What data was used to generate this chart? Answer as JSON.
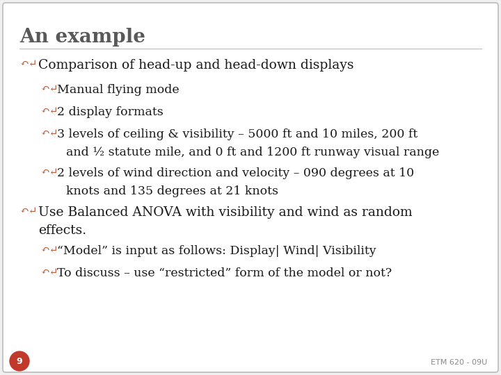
{
  "title": "An example",
  "title_color": "#595959",
  "background_color": "#f0f0f0",
  "border_color": "#bbbbbb",
  "bullet_color": "#b85c38",
  "text_color": "#1a1a1a",
  "slide_number": "9",
  "slide_number_bg": "#c0392b",
  "slide_number_text_color": "#ffffff",
  "footer_text": "ETM 620 - 09U",
  "footer_color": "#888888",
  "content": [
    {
      "level": 0,
      "text": "Comparison of head-up and head-down displays"
    },
    {
      "level": 1,
      "text": "Manual flying mode"
    },
    {
      "level": 1,
      "text": "2 display formats"
    },
    {
      "level": 1,
      "text": "3 levels of ceiling & visibility – 5000 ft and 10 miles, 200 ft",
      "cont": "and ½ statute mile, and 0 ft and 1200 ft runway visual range"
    },
    {
      "level": 1,
      "text": "2 levels of wind direction and velocity – 090 degrees at 10",
      "cont": "knots and 135 degrees at 21 knots"
    },
    {
      "level": 0,
      "text": "Use Balanced ANOVA with visibility and wind as random",
      "cont": "effects."
    },
    {
      "level": 1,
      "text": "“Model” is input as follows: Display| Wind| Visibility"
    },
    {
      "level": 1,
      "text": "To discuss – use “restricted” form of the model or not?"
    }
  ]
}
